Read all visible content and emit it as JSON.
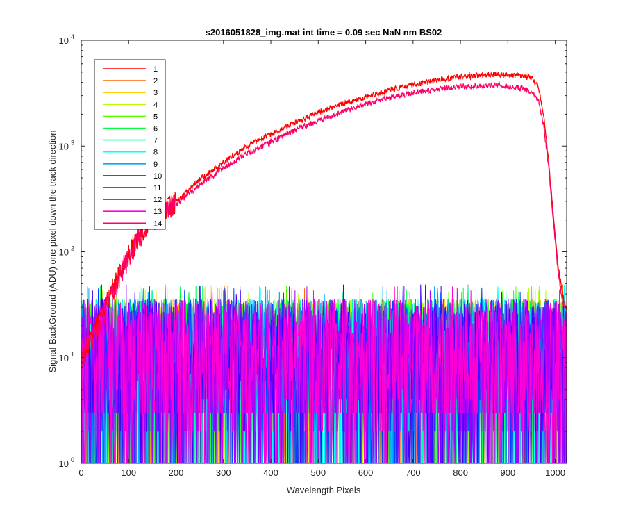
{
  "chart_data": {
    "type": "line",
    "title": "s2016051828_img.mat int time = 0.09 sec  NaN nm BS02",
    "xlabel": "Wavelength Pixels",
    "ylabel": "Signal-BackGround (ADU) one pixel down the track direction",
    "xlim": [
      0,
      1024
    ],
    "ylim": [
      1,
      10000
    ],
    "yscale": "log",
    "x_ticks": [
      {
        "value": 0,
        "label": "0"
      },
      {
        "value": 100,
        "label": "100"
      },
      {
        "value": 200,
        "label": "200"
      },
      {
        "value": 300,
        "label": "300"
      },
      {
        "value": 400,
        "label": "400"
      },
      {
        "value": 500,
        "label": "500"
      },
      {
        "value": 600,
        "label": "600"
      },
      {
        "value": 700,
        "label": "700"
      },
      {
        "value": 800,
        "label": "800"
      },
      {
        "value": 900,
        "label": "900"
      },
      {
        "value": 1000,
        "label": "1000"
      }
    ],
    "y_ticks": [
      {
        "value": 1,
        "base": "10",
        "exp": "0"
      },
      {
        "value": 10,
        "base": "10",
        "exp": "1"
      },
      {
        "value": 100,
        "base": "10",
        "exp": "2"
      },
      {
        "value": 1000,
        "base": "10",
        "exp": "3"
      },
      {
        "value": 10000,
        "base": "10",
        "exp": "4"
      }
    ],
    "grid": false,
    "legend_position": "top-left",
    "series": [
      {
        "name": "1",
        "color": "#ff0000",
        "kind": "signal",
        "points": [
          [
            0,
            10
          ],
          [
            20,
            15
          ],
          [
            40,
            25
          ],
          [
            60,
            40
          ],
          [
            80,
            60
          ],
          [
            100,
            95
          ],
          [
            120,
            140
          ],
          [
            140,
            190
          ],
          [
            160,
            220
          ],
          [
            180,
            260
          ],
          [
            200,
            300
          ],
          [
            250,
            480
          ],
          [
            300,
            700
          ],
          [
            350,
            1000
          ],
          [
            400,
            1300
          ],
          [
            450,
            1650
          ],
          [
            500,
            2100
          ],
          [
            550,
            2500
          ],
          [
            600,
            2900
          ],
          [
            650,
            3400
          ],
          [
            700,
            3800
          ],
          [
            750,
            4200
          ],
          [
            800,
            4500
          ],
          [
            850,
            4700
          ],
          [
            875,
            4800
          ],
          [
            900,
            4700
          ],
          [
            930,
            4600
          ],
          [
            950,
            4400
          ],
          [
            965,
            3500
          ],
          [
            975,
            2000
          ],
          [
            985,
            800
          ],
          [
            995,
            250
          ],
          [
            1005,
            80
          ],
          [
            1015,
            40
          ],
          [
            1024,
            28
          ]
        ]
      },
      {
        "name": "2",
        "color": "#ff6a00",
        "kind": "noise"
      },
      {
        "name": "3",
        "color": "#ffd000",
        "kind": "noise"
      },
      {
        "name": "4",
        "color": "#b5ff00",
        "kind": "noise"
      },
      {
        "name": "5",
        "color": "#55ff00",
        "kind": "noise"
      },
      {
        "name": "6",
        "color": "#00ff40",
        "kind": "noise"
      },
      {
        "name": "7",
        "color": "#00ffaa",
        "kind": "noise"
      },
      {
        "name": "8",
        "color": "#00ffff",
        "kind": "noise"
      },
      {
        "name": "9",
        "color": "#00aaff",
        "kind": "noise"
      },
      {
        "name": "10",
        "color": "#0040ff",
        "kind": "noise"
      },
      {
        "name": "11",
        "color": "#4000ff",
        "kind": "noise"
      },
      {
        "name": "12",
        "color": "#aa00ff",
        "kind": "noise"
      },
      {
        "name": "13",
        "color": "#ff00d5",
        "kind": "noise"
      },
      {
        "name": "14",
        "color": "#ff0066",
        "kind": "signal",
        "points": [
          [
            0,
            10
          ],
          [
            20,
            14
          ],
          [
            40,
            22
          ],
          [
            60,
            35
          ],
          [
            80,
            55
          ],
          [
            100,
            90
          ],
          [
            120,
            135
          ],
          [
            140,
            180
          ],
          [
            160,
            210
          ],
          [
            180,
            245
          ],
          [
            200,
            280
          ],
          [
            250,
            430
          ],
          [
            300,
            620
          ],
          [
            350,
            850
          ],
          [
            400,
            1100
          ],
          [
            450,
            1400
          ],
          [
            500,
            1750
          ],
          [
            550,
            2100
          ],
          [
            600,
            2500
          ],
          [
            650,
            2850
          ],
          [
            700,
            3200
          ],
          [
            750,
            3450
          ],
          [
            800,
            3650
          ],
          [
            850,
            3700
          ],
          [
            875,
            3800
          ],
          [
            900,
            3700
          ],
          [
            930,
            3500
          ],
          [
            950,
            3200
          ],
          [
            965,
            2600
          ],
          [
            975,
            1600
          ],
          [
            985,
            700
          ],
          [
            995,
            220
          ],
          [
            1005,
            70
          ],
          [
            1015,
            35
          ],
          [
            1024,
            25
          ]
        ]
      }
    ],
    "noise_level": {
      "typical_range": [
        1,
        45
      ],
      "median": 10
    }
  }
}
